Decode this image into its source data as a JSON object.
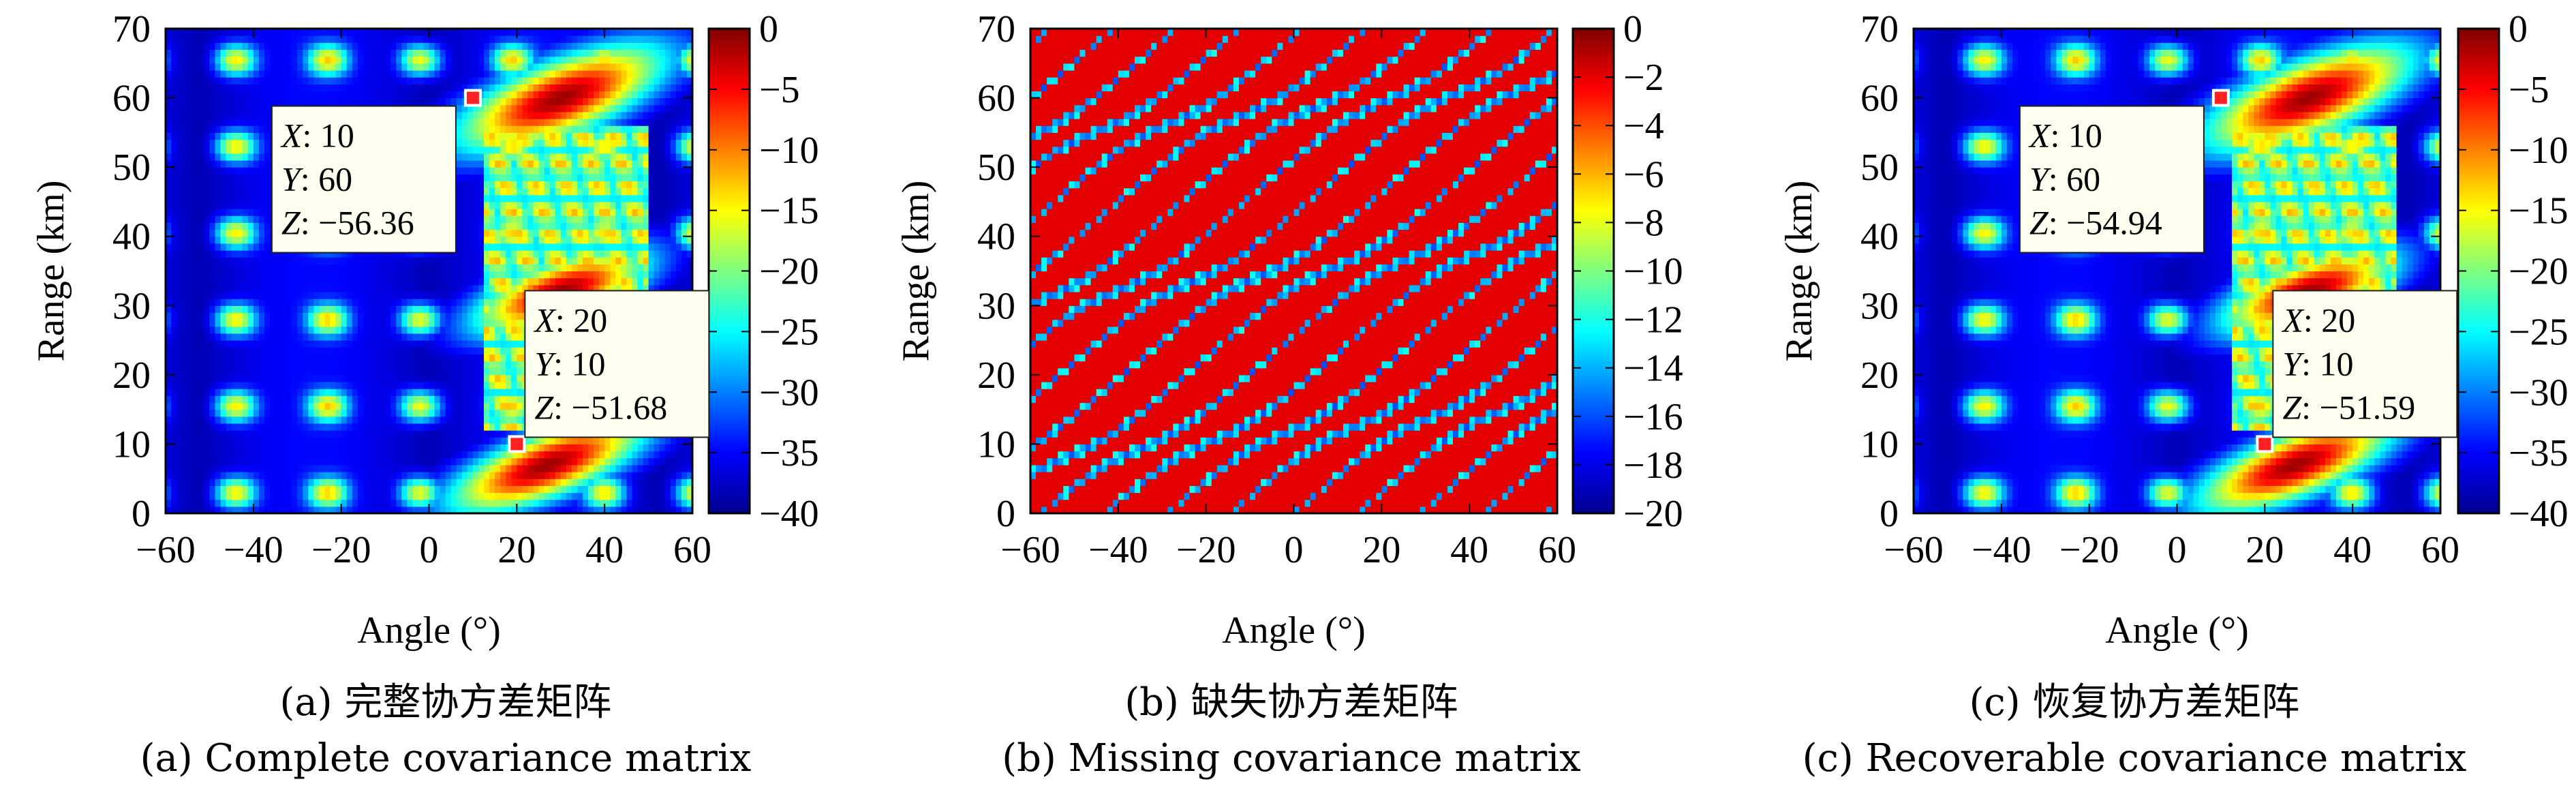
{
  "chart_data": [
    {
      "type": "heatmap",
      "id": "a",
      "xlabel": "Angle (°)",
      "ylabel": "Range (km)",
      "xlim": [
        -60,
        60
      ],
      "ylim": [
        0,
        70
      ],
      "xticks": [
        -60,
        -40,
        -20,
        0,
        20,
        40,
        60
      ],
      "yticks": [
        0,
        10,
        20,
        30,
        40,
        50,
        60,
        70
      ],
      "colorbar": {
        "min": -40,
        "max": 0,
        "ticks": [
          0,
          -5,
          -10,
          -15,
          -20,
          -25,
          -30,
          -35,
          -40
        ],
        "colormap": "jet"
      },
      "pattern": "complete",
      "markers": [
        {
          "x": 10,
          "y": 60,
          "z": "−56.36",
          "labels": [
            "X",
            "Y",
            "Z"
          ]
        },
        {
          "x": 20,
          "y": 10,
          "z": "−51.68",
          "labels": [
            "X",
            "Y",
            "Z"
          ]
        }
      ],
      "caption_zh": "(a) 完整协方差矩阵",
      "caption_en": "(a) Complete covariance matrix"
    },
    {
      "type": "heatmap",
      "id": "b",
      "xlabel": "Angle (°)",
      "ylabel": "Range (km)",
      "xlim": [
        -60,
        60
      ],
      "ylim": [
        0,
        70
      ],
      "xticks": [
        -60,
        -40,
        -20,
        0,
        20,
        40,
        60
      ],
      "yticks": [
        0,
        10,
        20,
        30,
        40,
        50,
        60,
        70
      ],
      "colorbar": {
        "min": -20,
        "max": 0,
        "ticks": [
          0,
          -2,
          -4,
          -6,
          -8,
          -10,
          -12,
          -14,
          -16,
          -18,
          -20
        ],
        "colormap": "jet"
      },
      "pattern": "missing",
      "markers": [],
      "caption_zh": "(b) 缺失协方差矩阵",
      "caption_en": "(b) Missing covariance matrix"
    },
    {
      "type": "heatmap",
      "id": "c",
      "xlabel": "Angle (°)",
      "ylabel": "Range (km)",
      "xlim": [
        -60,
        60
      ],
      "ylim": [
        0,
        70
      ],
      "xticks": [
        -60,
        -40,
        -20,
        0,
        20,
        40,
        60
      ],
      "yticks": [
        0,
        10,
        20,
        30,
        40,
        50,
        60,
        70
      ],
      "colorbar": {
        "min": -40,
        "max": 0,
        "ticks": [
          0,
          -5,
          -10,
          -15,
          -20,
          -25,
          -30,
          -35,
          -40
        ],
        "colormap": "jet"
      },
      "pattern": "complete",
      "markers": [
        {
          "x": 10,
          "y": 60,
          "z": "−54.94",
          "labels": [
            "X",
            "Y",
            "Z"
          ]
        },
        {
          "x": 20,
          "y": 10,
          "z": "−51.59",
          "labels": [
            "X",
            "Y",
            "Z"
          ]
        }
      ],
      "caption_zh": "(c) 恢复协方差矩阵",
      "caption_en": "(c) Recoverable covariance matrix"
    }
  ]
}
